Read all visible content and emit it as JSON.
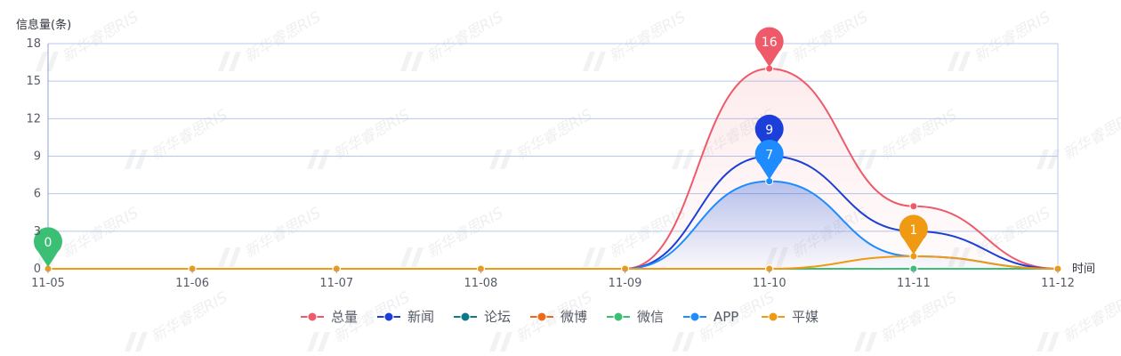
{
  "chart_data": {
    "type": "line",
    "smooth": true,
    "ylabel": "信息量(条)",
    "xlabel": "时间",
    "categories": [
      "11-05",
      "11-06",
      "11-07",
      "11-08",
      "11-09",
      "11-10",
      "11-11",
      "11-12"
    ],
    "ylim": [
      0,
      18
    ],
    "yticks": [
      0,
      3,
      6,
      9,
      12,
      15,
      18
    ],
    "grid": true,
    "legend_position": "bottom-center",
    "series": [
      {
        "name": "总量",
        "color": "#ee5a6a",
        "values": [
          0,
          0,
          0,
          0,
          0,
          16,
          5,
          0
        ],
        "area": true,
        "area_color": "#ee5a6a"
      },
      {
        "name": "新闻",
        "color": "#1b3fd8",
        "values": [
          0,
          0,
          0,
          0,
          0,
          9,
          3,
          0
        ]
      },
      {
        "name": "论坛",
        "color": "#0d7a8a",
        "values": [
          0,
          0,
          0,
          0,
          0,
          0,
          0,
          0
        ]
      },
      {
        "name": "微博",
        "color": "#f06a16",
        "values": [
          0,
          0,
          0,
          0,
          0,
          0,
          0,
          0
        ]
      },
      {
        "name": "微信",
        "color": "#3bbf74",
        "values": [
          0,
          0,
          0,
          0,
          0,
          0,
          0,
          0
        ]
      },
      {
        "name": "APP",
        "color": "#1e8cff",
        "values": [
          0,
          0,
          0,
          0,
          0,
          7,
          1,
          0
        ],
        "area": true,
        "area_color": "#2f5fd8"
      },
      {
        "name": "平媒",
        "color": "#ef9a12",
        "values": [
          0,
          0,
          0,
          0,
          0,
          0,
          1,
          0
        ]
      }
    ],
    "annotations": [
      {
        "series": "微信",
        "x": "11-05",
        "value": 0,
        "label": "0",
        "color": "#3bbf74"
      },
      {
        "series": "总量",
        "x": "11-10",
        "value": 16,
        "label": "16",
        "color": "#ee5a6a"
      },
      {
        "series": "新闻",
        "x": "11-10",
        "value": 9,
        "label": "9",
        "color": "#1b3fd8"
      },
      {
        "series": "APP",
        "x": "11-10",
        "value": 7,
        "label": "7",
        "color": "#1e8cff"
      },
      {
        "series": "平媒",
        "x": "11-11",
        "value": 1,
        "label": "1",
        "color": "#ef9a12"
      }
    ],
    "watermark": "新华睿思RIS",
    "colors": {
      "grid": "#b7c7ea",
      "axis": "#8fa3d6"
    }
  }
}
